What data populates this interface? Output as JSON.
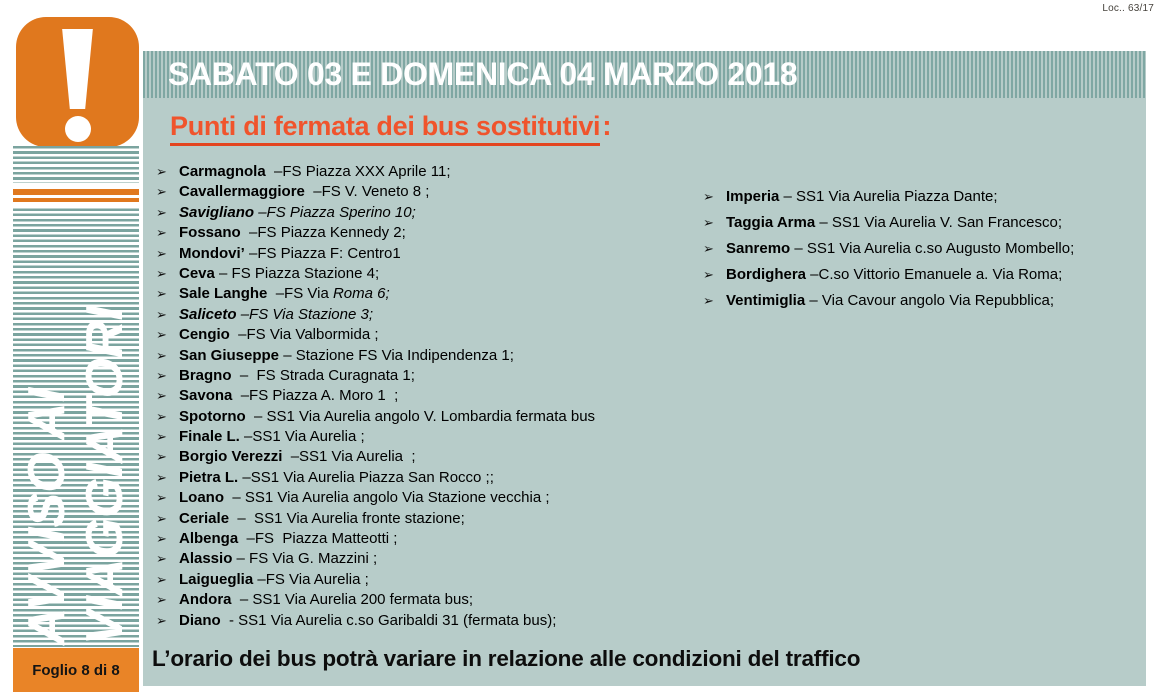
{
  "page": {
    "corner_label": "Loc.. 63/17"
  },
  "sidebar": {
    "vertical_text": [
      "AVVISO AI",
      "VIAGGIATORI"
    ],
    "folio_label": "Foglio 8 di 8"
  },
  "header": {
    "title": "SABATO 03 E DOMENICA 04 MARZO 2018"
  },
  "main": {
    "heading": "Punti di fermata dei bus sostitutivi",
    "heading_suffix": ":",
    "bullet_glyph": "➢",
    "stops_left": [
      {
        "name": "Carmagnola",
        "text": "  –FS Piazza XXX Aprile 11;"
      },
      {
        "name": "Cavallermaggiore",
        "text": "  –FS V. Veneto 8 ;"
      },
      {
        "name": "Savigliano",
        "text": " –FS Piazza Sperino 10;",
        "italic": true
      },
      {
        "name": "Fossano",
        "text": "  –FS Piazza Kennedy 2;"
      },
      {
        "name": "Mondovi’",
        "text": " –FS Piazza F: Centro1"
      },
      {
        "name": "Ceva",
        "text": " – FS Piazza Stazione 4;"
      },
      {
        "name": "Sale Langhe",
        "text": "  –FS Via ",
        "tail": "Roma 6;"
      },
      {
        "name": "Saliceto",
        "text": " –FS Via Stazione 3;",
        "italic": true
      },
      {
        "name": "Cengio",
        "text": "  –FS Via Valbormida ;"
      },
      {
        "name": "San Giuseppe",
        "text": " – Stazione FS Via Indipendenza 1;"
      },
      {
        "name": "Bragno",
        "text": "  –  FS Strada Curagnata 1;"
      },
      {
        "name": "Savona",
        "text": "  –FS Piazza A. Moro 1  ;"
      },
      {
        "name": "Spotorno",
        "text": "  – SS1 Via Aurelia angolo V. Lombardia fermata bus"
      },
      {
        "name": "Finale L.",
        "text": " –SS1 Via Aurelia ;"
      },
      {
        "name": "Borgio Verezzi",
        "text": "  –SS1 Via Aurelia  ;"
      },
      {
        "name": "Pietra L.",
        "text": " –SS1 Via Aurelia Piazza San Rocco ;;"
      },
      {
        "name": "Loano",
        "text": "  – SS1 Via Aurelia angolo Via Stazione vecchia ;"
      },
      {
        "name": "Ceriale",
        "text": "  –  SS1 Via Aurelia fronte stazione;"
      },
      {
        "name": "Albenga",
        "text": "  –FS  Piazza Matteotti ;"
      },
      {
        "name": "Alassio",
        "text": " – FS Via G. Mazzini ;"
      },
      {
        "name": "Laigueglia",
        "text": " –FS Via Aurelia ;"
      },
      {
        "name": "Andora",
        "text": "  – SS1 Via Aurelia 200 fermata bus;"
      },
      {
        "name": "Diano",
        "text": "  - SS1 Via Aurelia c.so Garibaldi 31 (fermata bus);"
      }
    ],
    "stops_right": [
      {
        "name": "Imperia",
        "text": " – SS1 Via Aurelia Piazza Dante;"
      },
      {
        "name": "Taggia Arma",
        "text": " – SS1 Via Aurelia V. San Francesco;"
      },
      {
        "name": "Sanremo",
        "text": " – SS1 Via Aurelia c.so Augusto Mombello;"
      },
      {
        "name": "Bordighera",
        "text": " –C.so Vittorio Emanuele a. Via Roma;"
      },
      {
        "name": "Ventimiglia",
        "text": " – Via Cavour angolo Via Repubblica;"
      }
    ],
    "footer_note": "L’orario dei bus potrà variare in relazione alle condizioni del traffico"
  },
  "colors": {
    "icon_orange": "#e0781e",
    "folio_orange": "#e98427",
    "heading_orange": "#f0542c",
    "content_teal": "#b7ccc9",
    "header_stripe_dark": "#7fa7a3",
    "header_stripe_light": "#b6cbc8",
    "sidebar_stripe_teal": "#7ba49f"
  }
}
